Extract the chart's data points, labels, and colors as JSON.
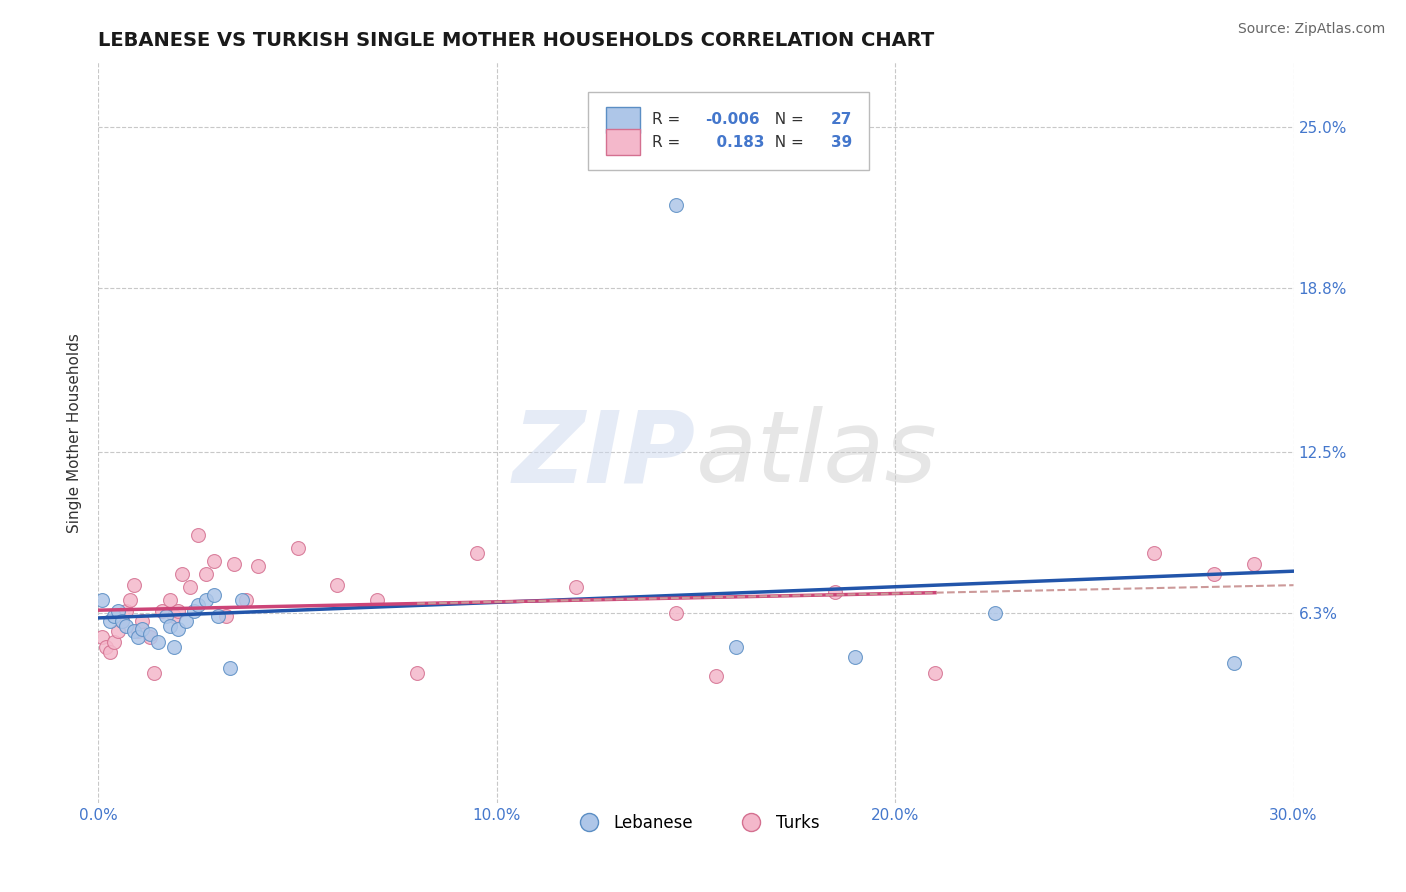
{
  "title": "LEBANESE VS TURKISH SINGLE MOTHER HOUSEHOLDS CORRELATION CHART",
  "source": "Source: ZipAtlas.com",
  "ylabel": "Single Mother Households",
  "xlim": [
    0.0,
    0.3
  ],
  "ylim": [
    -0.01,
    0.275
  ],
  "yticks": [
    0.063,
    0.125,
    0.188,
    0.25
  ],
  "ytick_labels": [
    "6.3%",
    "12.5%",
    "18.8%",
    "25.0%"
  ],
  "xticks": [
    0.0,
    0.1,
    0.2,
    0.3
  ],
  "xtick_labels": [
    "0.0%",
    "10.0%",
    "20.0%",
    "30.0%"
  ],
  "background_color": "#ffffff",
  "grid_color": "#c8c8c8",
  "legend_R_blue": "-0.006",
  "legend_N_blue": "27",
  "legend_R_pink": "0.183",
  "legend_N_pink": "39",
  "blue_x": [
    0.001,
    0.003,
    0.004,
    0.005,
    0.006,
    0.007,
    0.009,
    0.01,
    0.011,
    0.013,
    0.015,
    0.017,
    0.018,
    0.019,
    0.02,
    0.022,
    0.024,
    0.025,
    0.027,
    0.029,
    0.03,
    0.033,
    0.036,
    0.16,
    0.19,
    0.225,
    0.285
  ],
  "blue_y": [
    0.068,
    0.06,
    0.062,
    0.064,
    0.06,
    0.058,
    0.056,
    0.054,
    0.057,
    0.055,
    0.052,
    0.062,
    0.058,
    0.05,
    0.057,
    0.06,
    0.064,
    0.066,
    0.068,
    0.07,
    0.062,
    0.042,
    0.068,
    0.05,
    0.046,
    0.063,
    0.044
  ],
  "blue_outlier_x": [
    0.145
  ],
  "blue_outlier_y": [
    0.22
  ],
  "pink_x": [
    0.001,
    0.002,
    0.003,
    0.004,
    0.005,
    0.006,
    0.007,
    0.008,
    0.009,
    0.01,
    0.011,
    0.013,
    0.014,
    0.016,
    0.018,
    0.019,
    0.02,
    0.021,
    0.023,
    0.025,
    0.027,
    0.029,
    0.032,
    0.034,
    0.037,
    0.04,
    0.05,
    0.06,
    0.07,
    0.08,
    0.095,
    0.12,
    0.145,
    0.155,
    0.185,
    0.21,
    0.265,
    0.28,
    0.29
  ],
  "pink_y": [
    0.054,
    0.05,
    0.048,
    0.052,
    0.056,
    0.06,
    0.064,
    0.068,
    0.074,
    0.056,
    0.06,
    0.054,
    0.04,
    0.064,
    0.068,
    0.062,
    0.064,
    0.078,
    0.073,
    0.093,
    0.078,
    0.083,
    0.062,
    0.082,
    0.068,
    0.081,
    0.088,
    0.074,
    0.068,
    0.04,
    0.086,
    0.073,
    0.063,
    0.039,
    0.071,
    0.04,
    0.086,
    0.078,
    0.082
  ],
  "blue_color": "#aec6e8",
  "blue_edge": "#5b8ec4",
  "pink_color": "#f4b8cb",
  "pink_edge": "#d47090",
  "blue_line_color": "#2255aa",
  "pink_line_color": "#cc4477",
  "pink_dash_color": "#cc9999",
  "marker_size": 100,
  "title_fontsize": 14,
  "label_fontsize": 11,
  "tick_fontsize": 11,
  "source_fontsize": 10
}
